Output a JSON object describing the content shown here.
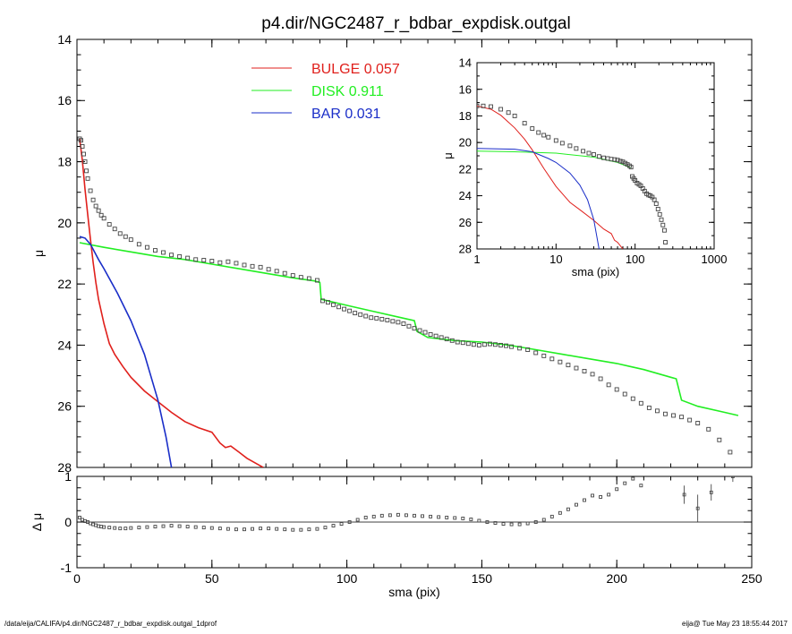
{
  "title": "p4.dir/NGC2487_r_bdbar_expdisk.outgal",
  "footer": {
    "left": "/data/eija/CALIFA/p4.dir/NGC2487_r_bdbar_expdisk.outgal_1dprof",
    "right": "eija@  Tue May 23 18:55:44 2017"
  },
  "colors": {
    "bulge": "#e0201c",
    "disk": "#22ee22",
    "bar": "#1a2ec8",
    "data": "#444444"
  },
  "chart_data": [
    {
      "type": "scatter",
      "panel": "main",
      "xlabel": "sma (pix)",
      "ylabel": "μ",
      "xlim": [
        0,
        250
      ],
      "ylim": [
        28,
        14
      ],
      "xticks": [
        0,
        50,
        100,
        150,
        200,
        250
      ],
      "yticks": [
        14,
        16,
        18,
        20,
        22,
        24,
        26,
        28
      ],
      "legend_position": "top-left",
      "legend": [
        {
          "label": "BULGE",
          "value": "0.057",
          "color": "#e0201c"
        },
        {
          "label": "DISK",
          "value": "0.911",
          "color": "#22ee22"
        },
        {
          "label": "BAR",
          "value": "0.031",
          "color": "#1a2ec8"
        }
      ],
      "series": [
        {
          "name": "BULGE",
          "style": "line",
          "x": [
            1,
            2,
            3,
            4,
            5,
            6,
            7,
            8,
            10,
            12,
            14,
            17,
            20,
            25,
            30,
            35,
            40,
            45,
            50,
            53,
            55,
            57,
            60,
            63,
            66,
            69
          ],
          "y": [
            17.25,
            17.95,
            18.9,
            19.75,
            20.55,
            21.3,
            21.95,
            22.5,
            23.3,
            23.95,
            24.3,
            24.7,
            25.05,
            25.5,
            25.85,
            26.2,
            26.5,
            26.7,
            26.85,
            27.2,
            27.35,
            27.3,
            27.5,
            27.7,
            27.85,
            28.0
          ]
        },
        {
          "name": "DISK",
          "style": "line",
          "x": [
            1,
            10,
            20,
            30,
            40,
            50,
            60,
            70,
            80,
            88,
            90,
            90.5,
            100,
            110,
            120,
            125,
            126,
            130,
            140,
            150,
            160,
            170,
            180,
            190,
            200,
            205,
            210,
            220,
            222,
            224,
            230,
            240,
            245
          ],
          "y": [
            20.65,
            20.8,
            20.95,
            21.1,
            21.2,
            21.35,
            21.5,
            21.65,
            21.8,
            21.9,
            21.95,
            22.5,
            22.7,
            22.9,
            23.1,
            23.2,
            23.55,
            23.75,
            23.85,
            23.9,
            24.0,
            24.15,
            24.3,
            24.45,
            24.6,
            24.7,
            24.8,
            25.05,
            25.1,
            25.8,
            26.0,
            26.2,
            26.3
          ]
        },
        {
          "name": "BAR",
          "style": "line",
          "x": [
            1,
            3,
            5,
            8,
            10,
            15,
            20,
            25,
            30,
            33,
            35
          ],
          "y": [
            20.45,
            20.5,
            20.7,
            21.2,
            21.5,
            22.3,
            23.2,
            24.3,
            25.8,
            27.0,
            28.0
          ]
        },
        {
          "name": "data",
          "style": "markers",
          "x": [
            1,
            1.5,
            2,
            2.5,
            3,
            3.5,
            4,
            5,
            6,
            7,
            8,
            9,
            10,
            12,
            14,
            16,
            18,
            20,
            23,
            26,
            29,
            32,
            35,
            38,
            41,
            44,
            47,
            50,
            53,
            56,
            59,
            62,
            65,
            68,
            71,
            74,
            77,
            80,
            83,
            86,
            89,
            91,
            93,
            95,
            97,
            99,
            101,
            103,
            105,
            107,
            109,
            111,
            113,
            115,
            117,
            119,
            121,
            123,
            125,
            127,
            129,
            131,
            133,
            135,
            137,
            139,
            141,
            143,
            145,
            147,
            149,
            151,
            153,
            155,
            157,
            159,
            161,
            164,
            167,
            170,
            173,
            176,
            179,
            182,
            185,
            188,
            191,
            194,
            197,
            200,
            203,
            206,
            209,
            212,
            215,
            218,
            221,
            224,
            227,
            230,
            234,
            238,
            242
          ],
          "y": [
            17.25,
            17.3,
            17.5,
            17.75,
            18.0,
            18.3,
            18.55,
            18.95,
            19.25,
            19.45,
            19.6,
            19.75,
            19.85,
            20.05,
            20.2,
            20.35,
            20.45,
            20.55,
            20.7,
            20.8,
            20.9,
            20.97,
            21.05,
            21.1,
            21.15,
            21.2,
            21.22,
            21.25,
            21.3,
            21.27,
            21.32,
            21.38,
            21.42,
            21.45,
            21.52,
            21.58,
            21.65,
            21.72,
            21.78,
            21.82,
            21.88,
            22.55,
            22.6,
            22.68,
            22.75,
            22.82,
            22.88,
            22.95,
            23.0,
            23.05,
            23.1,
            23.12,
            23.15,
            23.18,
            23.22,
            23.25,
            23.3,
            23.38,
            23.45,
            23.52,
            23.58,
            23.65,
            23.7,
            23.75,
            23.8,
            23.85,
            23.9,
            23.92,
            23.95,
            23.98,
            24.0,
            23.98,
            23.96,
            23.98,
            24.0,
            24.02,
            24.05,
            24.1,
            24.15,
            24.25,
            24.35,
            24.45,
            24.55,
            24.65,
            24.75,
            24.85,
            24.95,
            25.1,
            25.3,
            25.45,
            25.6,
            25.75,
            25.9,
            26.05,
            26.15,
            26.25,
            26.3,
            26.35,
            26.45,
            26.55,
            26.75,
            27.1,
            27.5
          ]
        }
      ]
    },
    {
      "type": "line",
      "panel": "inset",
      "xscale": "log",
      "xlabel": "sma (pix)",
      "ylabel": "μ",
      "xlim": [
        1,
        1000
      ],
      "ylim": [
        28,
        14
      ],
      "xticks": [
        1,
        10,
        100,
        1000
      ],
      "yticks": [
        14,
        16,
        18,
        20,
        22,
        24,
        26,
        28
      ],
      "series": [
        {
          "name": "BULGE",
          "style": "line",
          "x": [
            1,
            1.5,
            2,
            3,
            4,
            5,
            7,
            10,
            15,
            20,
            30,
            40,
            50,
            55,
            60,
            70
          ],
          "y": [
            17.25,
            17.5,
            17.95,
            18.9,
            19.75,
            20.55,
            21.95,
            23.3,
            24.5,
            25.05,
            25.85,
            26.5,
            26.85,
            27.35,
            27.5,
            28.0
          ]
        },
        {
          "name": "DISK",
          "style": "line",
          "x": [
            1,
            3,
            10,
            30,
            60,
            89
          ],
          "y": [
            20.65,
            20.7,
            20.8,
            21.1,
            21.5,
            21.9
          ]
        },
        {
          "name": "BAR",
          "style": "line",
          "x": [
            1,
            3,
            5,
            8,
            10,
            15,
            20,
            25,
            30,
            35
          ],
          "y": [
            20.45,
            20.5,
            20.7,
            21.2,
            21.5,
            22.3,
            23.2,
            24.3,
            25.8,
            28.0
          ]
        },
        {
          "name": "data",
          "style": "markers",
          "x": [
            1,
            1.2,
            1.5,
            2,
            2.5,
            3,
            4,
            5,
            6,
            7,
            8,
            10,
            12,
            15,
            18,
            22,
            26,
            30,
            35,
            40,
            45,
            50,
            55,
            60,
            65,
            70,
            75,
            80,
            85,
            89,
            92,
            96,
            100,
            106,
            112,
            118,
            125,
            132,
            140,
            148,
            156,
            165,
            175,
            185,
            195,
            205,
            215,
            225,
            235,
            242
          ],
          "y": [
            17.25,
            17.25,
            17.3,
            17.5,
            17.75,
            18.0,
            18.55,
            18.95,
            19.25,
            19.45,
            19.6,
            19.85,
            20.05,
            20.25,
            20.45,
            20.65,
            20.8,
            20.9,
            21.05,
            21.15,
            21.2,
            21.25,
            21.28,
            21.32,
            21.4,
            21.45,
            21.55,
            21.65,
            21.75,
            21.85,
            22.55,
            22.7,
            22.85,
            23.05,
            23.15,
            23.25,
            23.45,
            23.65,
            23.85,
            23.95,
            24.0,
            24.1,
            24.3,
            24.6,
            25.0,
            25.4,
            25.8,
            26.2,
            26.6,
            27.5
          ]
        }
      ]
    },
    {
      "type": "scatter",
      "panel": "residuals",
      "xlabel": "sma (pix)",
      "ylabel": "Δ μ",
      "xlim": [
        0,
        250
      ],
      "ylim": [
        -1,
        1
      ],
      "xticks": [
        0,
        50,
        100,
        150,
        200,
        250
      ],
      "yticks": [
        -1,
        0,
        1
      ],
      "zero_line": true,
      "series": [
        {
          "name": "residual",
          "style": "markers",
          "x": [
            1,
            2,
            3,
            4,
            5,
            6,
            7,
            8,
            9,
            10,
            12,
            14,
            16,
            18,
            20,
            23,
            26,
            29,
            32,
            35,
            38,
            41,
            44,
            47,
            50,
            53,
            56,
            59,
            62,
            65,
            68,
            71,
            74,
            77,
            80,
            83,
            86,
            89,
            92,
            95,
            98,
            101,
            104,
            107,
            110,
            113,
            116,
            119,
            122,
            125,
            128,
            131,
            134,
            137,
            140,
            143,
            146,
            149,
            152,
            155,
            158,
            161,
            164,
            167,
            170,
            173,
            176,
            179,
            182,
            185,
            188,
            191,
            194,
            197,
            200,
            203,
            206,
            209
          ],
          "y": [
            0.1,
            0.05,
            0.02,
            0.0,
            -0.03,
            -0.05,
            -0.07,
            -0.09,
            -0.1,
            -0.11,
            -0.12,
            -0.13,
            -0.14,
            -0.14,
            -0.13,
            -0.12,
            -0.11,
            -0.1,
            -0.09,
            -0.08,
            -0.09,
            -0.1,
            -0.11,
            -0.12,
            -0.13,
            -0.14,
            -0.15,
            -0.16,
            -0.16,
            -0.15,
            -0.14,
            -0.14,
            -0.15,
            -0.16,
            -0.17,
            -0.17,
            -0.16,
            -0.15,
            -0.12,
            -0.08,
            -0.04,
            0.0,
            0.05,
            0.1,
            0.12,
            0.14,
            0.15,
            0.16,
            0.15,
            0.14,
            0.13,
            0.12,
            0.11,
            0.1,
            0.09,
            0.08,
            0.06,
            0.03,
            0.0,
            -0.02,
            -0.04,
            -0.05,
            -0.05,
            -0.03,
            0.0,
            0.05,
            0.12,
            0.2,
            0.28,
            0.38,
            0.48,
            0.58,
            0.55,
            0.6,
            0.72,
            0.85,
            0.95,
            0.8
          ]
        },
        {
          "name": "residual-errors",
          "style": "errorbars",
          "x": [
            225,
            230,
            235,
            243
          ],
          "y": [
            0.6,
            0.3,
            0.65,
            1.0
          ],
          "err": [
            0.2,
            0.3,
            0.18,
            0.12
          ]
        }
      ]
    }
  ]
}
